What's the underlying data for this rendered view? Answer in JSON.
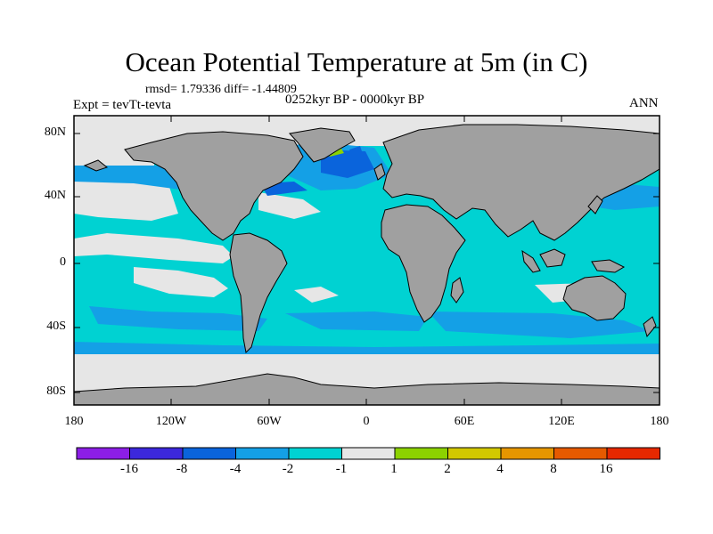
{
  "title": "Ocean Potential Temperature at 5m (in C)",
  "stats": "rmsd= 1.79336 diff= -1.44809",
  "experiment": "Expt = tevTt-tevta",
  "period": "0252kyr BP - 0000kyr BP",
  "season": "ANN",
  "map": {
    "lat_labels": [
      "80N",
      "40N",
      "0",
      "40S",
      "80S"
    ],
    "lon_labels": [
      "180",
      "120W",
      "60W",
      "0",
      "60E",
      "120E",
      "180"
    ],
    "colors": {
      "land": "#a0a0a0",
      "ocean_base": "#00d2d2",
      "near_zero": "#e6e6e6",
      "blue_mid": "#14a0e6",
      "blue_deep": "#0a64dc",
      "green": "#8cd200"
    }
  },
  "colorbar": {
    "labels": [
      "-16",
      "-8",
      "-4",
      "-2",
      "-1",
      "1",
      "2",
      "4",
      "8",
      "16"
    ],
    "colors": [
      "#8c1ee6",
      "#3c28dc",
      "#0a64dc",
      "#14a0e6",
      "#00d2d2",
      "#e6e6e6",
      "#8cd200",
      "#d2c800",
      "#e69600",
      "#e65a00",
      "#e62800"
    ]
  }
}
